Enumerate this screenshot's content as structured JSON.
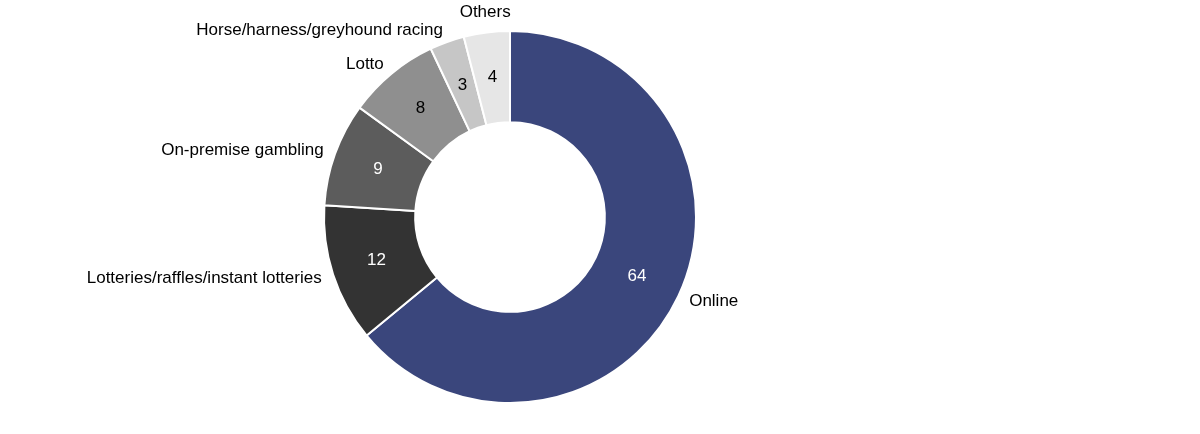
{
  "chart_data": {
    "type": "doughnut",
    "categories": [
      "Online",
      "Lotteries/raffles/instant lotteries",
      "On-premise gambling",
      "Lotto",
      "Horse/harness/greyhound racing",
      "Others"
    ],
    "values": [
      64,
      12,
      9,
      8,
      3,
      4
    ],
    "colors": [
      "#3a467c",
      "#333333",
      "#5c5c5c",
      "#8f8f8f",
      "#c6c6c6",
      "#e6e6e6"
    ],
    "data_labels": true
  }
}
